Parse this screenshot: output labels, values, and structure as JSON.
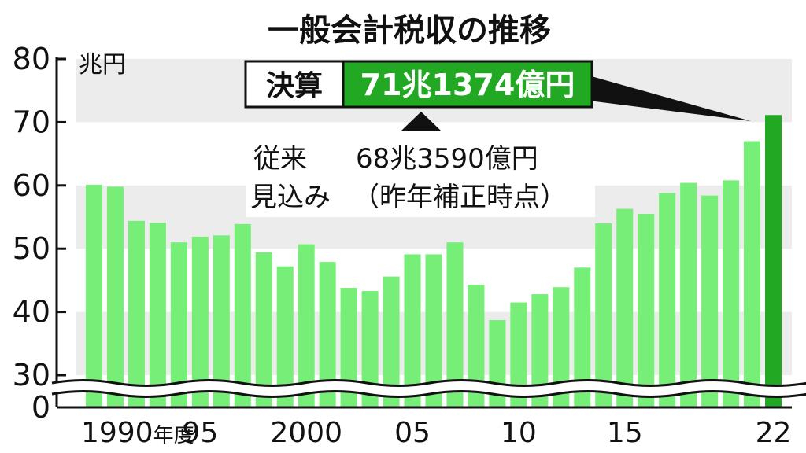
{
  "chart_data": {
    "type": "bar",
    "title": "一般会計税収の推移",
    "ylabel": "兆円",
    "ylim": [
      0,
      80
    ],
    "y_axis_break": [
      0,
      30
    ],
    "yticks": [
      "0",
      "30",
      "40",
      "50",
      "60",
      "70",
      "80"
    ],
    "xtick_labels": [
      {
        "at": "1990",
        "text": "1990",
        "suffix": "年度"
      },
      {
        "at": "1995",
        "text": "95"
      },
      {
        "at": "2000",
        "text": "2000"
      },
      {
        "at": "2005",
        "text": "05"
      },
      {
        "at": "2010",
        "text": "10"
      },
      {
        "at": "2015",
        "text": "15"
      },
      {
        "at": "2022",
        "text": "22"
      }
    ],
    "categories": [
      "1990",
      "1991",
      "1992",
      "1993",
      "1994",
      "1995",
      "1996",
      "1997",
      "1998",
      "1999",
      "2000",
      "2001",
      "2002",
      "2003",
      "2004",
      "2005",
      "2006",
      "2007",
      "2008",
      "2009",
      "2010",
      "2011",
      "2012",
      "2013",
      "2014",
      "2015",
      "2016",
      "2017",
      "2018",
      "2019",
      "2020",
      "2021",
      "2022"
    ],
    "values": [
      60.1,
      59.8,
      54.4,
      54.1,
      51.0,
      51.9,
      52.1,
      53.9,
      49.4,
      47.2,
      50.7,
      47.9,
      43.8,
      43.3,
      45.6,
      49.1,
      49.1,
      51.0,
      44.3,
      38.7,
      41.5,
      42.8,
      43.9,
      47.0,
      54.0,
      56.3,
      55.5,
      58.8,
      60.4,
      58.4,
      60.8,
      67.0,
      71.1374
    ],
    "highlight_index": 32,
    "colors": {
      "bar": "#77ee77",
      "highlight": "#22a822",
      "band": "#ececec"
    },
    "callout": {
      "label": "決算",
      "value": "71兆1374億円"
    },
    "annotation": {
      "line1_label": "従来",
      "line1_value": "68兆3590億円",
      "line2_label": "見込み",
      "line2_value": "（昨年補正時点）"
    },
    "grid": false
  }
}
